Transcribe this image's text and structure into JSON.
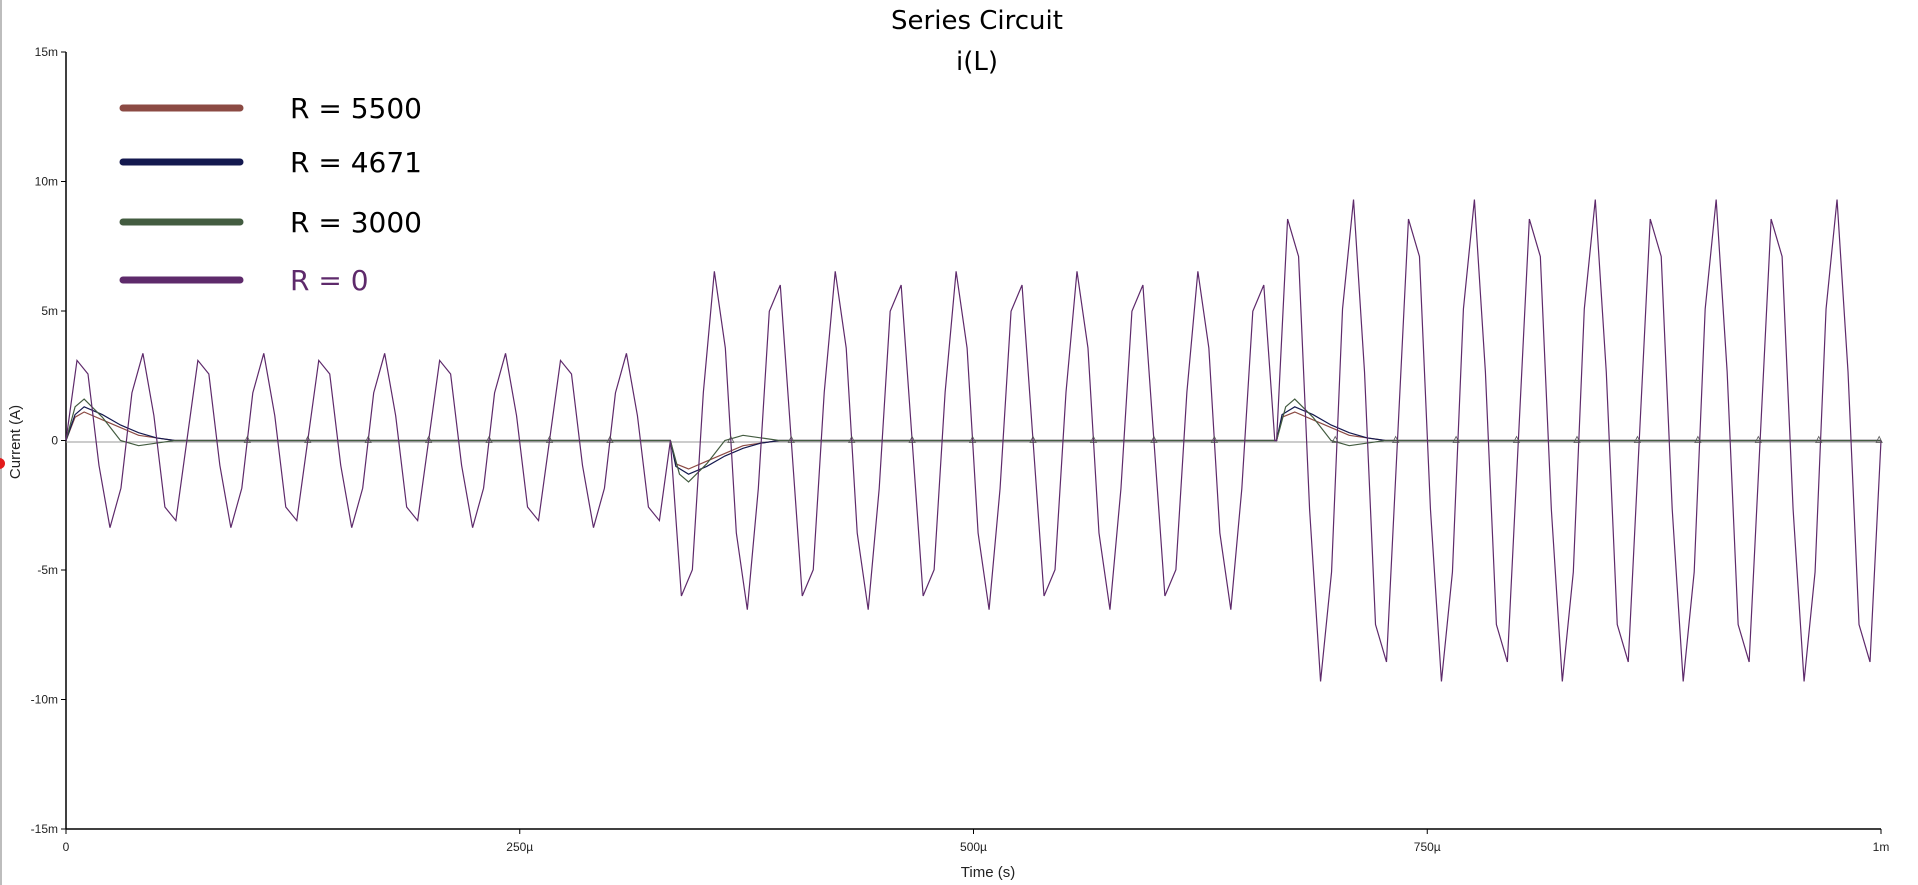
{
  "chart_data": {
    "type": "line",
    "title": "Series Circuit",
    "subtitle": "i(L)",
    "xlabel": "Time (s)",
    "ylabel": "Current (A)",
    "xlim": [
      0,
      0.001
    ],
    "ylim": [
      -0.015,
      0.015
    ],
    "x_ticks": [
      {
        "value": 0,
        "label": "0"
      },
      {
        "value": 0.00025,
        "label": "250µ"
      },
      {
        "value": 0.0005,
        "label": "500µ"
      },
      {
        "value": 0.00075,
        "label": "750µ"
      },
      {
        "value": 0.001,
        "label": "1m"
      }
    ],
    "y_ticks": [
      {
        "value": 0.015,
        "label": "15m"
      },
      {
        "value": 0.01,
        "label": "10m"
      },
      {
        "value": 0.005,
        "label": "5m"
      },
      {
        "value": 0,
        "label": "0"
      },
      {
        "value": -0.005,
        "label": "-5m"
      },
      {
        "value": -0.01,
        "label": "-10m"
      },
      {
        "value": -0.015,
        "label": "-15m"
      }
    ],
    "grid": false,
    "legend_position": "top-left",
    "legend": [
      {
        "label": "R = 5500",
        "color": "#8b4a43",
        "text_color": "#000000"
      },
      {
        "label": "R = 4671",
        "color": "#14194f",
        "text_color": "#000000"
      },
      {
        "label": "R = 3000",
        "color": "#435c40",
        "text_color": "#000000"
      },
      {
        "label": "R = 0",
        "color": "#5e2a6b",
        "text_color": "#5e2a6b"
      }
    ],
    "series": [
      {
        "color": "#8b4a43",
        "description_values": "damped transient at each source step",
        "x": [
          0,
          5e-06,
          1e-05,
          2e-05,
          3e-05,
          4e-05,
          5e-05,
          6e-05,
          7e-05,
          0.000333,
          0.000336,
          0.000343,
          0.000353,
          0.000363,
          0.000373,
          0.000383,
          0.000393,
          0.0004,
          0.000667,
          0.00067,
          0.000677,
          0.000687,
          0.000697,
          0.000707,
          0.000717,
          0.000727,
          0.000734,
          0.001
        ],
        "y": [
          0,
          0.0009,
          0.0011,
          0.0008,
          0.0005,
          0.0002,
          0.0001,
          0,
          0,
          0,
          -0.0009,
          -0.0011,
          -0.0008,
          -0.0005,
          -0.0002,
          -0.0001,
          0,
          0,
          0,
          0.0009,
          0.0011,
          0.0008,
          0.0005,
          0.0002,
          0.0001,
          0,
          0,
          0
        ]
      },
      {
        "color": "#14194f",
        "description_values": "damped transient at each source step",
        "x": [
          0,
          5e-06,
          1e-05,
          2e-05,
          3e-05,
          4e-05,
          5e-05,
          6e-05,
          7e-05,
          0.000333,
          0.000336,
          0.000343,
          0.000353,
          0.000363,
          0.000373,
          0.000383,
          0.000393,
          0.0004,
          0.000667,
          0.00067,
          0.000677,
          0.000687,
          0.000697,
          0.000707,
          0.000717,
          0.000727,
          0.000734,
          0.001
        ],
        "y": [
          0,
          0.001,
          0.0013,
          0.001,
          0.0006,
          0.0003,
          0.0001,
          0,
          0,
          0,
          -0.001,
          -0.0013,
          -0.001,
          -0.0006,
          -0.0003,
          -0.0001,
          0,
          0,
          0,
          0.001,
          0.0013,
          0.001,
          0.0006,
          0.0003,
          0.0001,
          0,
          0,
          0
        ]
      },
      {
        "color": "#435c40",
        "description_values": "underdamped transient at each source step",
        "x": [
          0,
          5e-06,
          1e-05,
          2e-05,
          3e-05,
          4e-05,
          5e-05,
          6e-05,
          7e-05,
          0.000333,
          0.000338,
          0.000343,
          0.000353,
          0.000363,
          0.000373,
          0.000383,
          0.000393,
          0.0004,
          0.000667,
          0.000672,
          0.000677,
          0.000687,
          0.000697,
          0.000707,
          0.000717,
          0.000727,
          0.000734,
          0.001
        ],
        "y": [
          0,
          0.0013,
          0.0016,
          0.0009,
          0,
          -0.0002,
          -0.0001,
          0,
          0,
          0,
          -0.0013,
          -0.0016,
          -0.0009,
          0,
          0.0002,
          0.0001,
          0,
          0,
          0,
          0.0013,
          0.0016,
          0.0009,
          0,
          -0.0002,
          -0.0001,
          0,
          0,
          0
        ]
      },
      {
        "color": "#5e2a6b",
        "description_values": "undamped oscillation, period ~33.3µs, amplitude growing at each source step",
        "segments": [
          {
            "x_start": 0,
            "x_end": 0.000333,
            "amplitude": 0.0034
          },
          {
            "x_start": 0.000333,
            "x_end": 0.000667,
            "amplitude": 0.0066
          },
          {
            "x_start": 0.000667,
            "x_end": 0.001,
            "amplitude": 0.0094
          }
        ],
        "period": 3.33e-05
      }
    ]
  }
}
